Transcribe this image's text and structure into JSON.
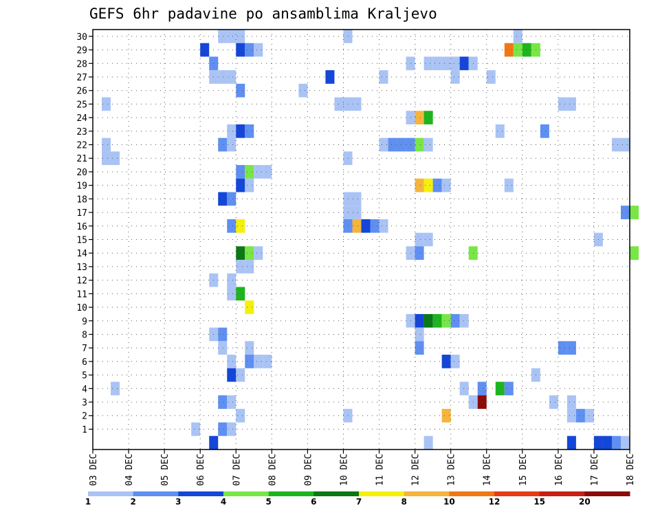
{
  "chart_data": {
    "type": "heatmap",
    "title": "GEFS 6hr padavine po ansamblima Kraljevo",
    "x_tick_labels": [
      "03 DEC",
      "04 DEC",
      "05 DEC",
      "06 DEC",
      "07 DEC",
      "08 DEC",
      "09 DEC",
      "10 DEC",
      "11 DEC",
      "12 DEC",
      "13 DEC",
      "14 DEC",
      "15 DEC",
      "16 DEC",
      "17 DEC",
      "18 DEC"
    ],
    "x_range_days": [
      0,
      15
    ],
    "time_step_hours": 6,
    "members_range": [
      0,
      30
    ],
    "y_tick_labels": [
      "1",
      "2",
      "3",
      "4",
      "5",
      "6",
      "7",
      "8",
      "9",
      "10",
      "11",
      "12",
      "13",
      "14",
      "15",
      "16",
      "17",
      "18",
      "19",
      "20",
      "21",
      "22",
      "23",
      "24",
      "25",
      "26",
      "27",
      "28",
      "29",
      "30"
    ],
    "grid": true,
    "legend": {
      "position": "bottom",
      "boundaries": [
        "1",
        "2",
        "3",
        "4",
        "5",
        "6",
        "7",
        "8",
        "10",
        "12",
        "15",
        "20"
      ],
      "colors": [
        "#aac3f5",
        "#5f8ff0",
        "#1446d8",
        "#78e646",
        "#1eb41e",
        "#0a7814",
        "#f5f00a",
        "#f5b43c",
        "#f07814",
        "#e63c14",
        "#c81e14",
        "#8c0a0a"
      ]
    },
    "palette": {
      "1": "#aac3f5",
      "2": "#5f8ff0",
      "3": "#1446d8",
      "4": "#78e646",
      "5": "#1eb41e",
      "6": "#0a7814",
      "7": "#f5f00a",
      "8": "#f5b43c",
      "9": "#f07814",
      "10": "#e63c14",
      "11": "#c81e14",
      "12": "#8c0a0a"
    },
    "cells_note": "each cell = [member, 6h step index from 03 DEC 00Z, color class 1..12]",
    "cells": [
      [
        30,
        14,
        1
      ],
      [
        30,
        15,
        1
      ],
      [
        30,
        16,
        1
      ],
      [
        30,
        28,
        1
      ],
      [
        30,
        47,
        1
      ],
      [
        29,
        12,
        3
      ],
      [
        29,
        16,
        3
      ],
      [
        29,
        17,
        2
      ],
      [
        29,
        18,
        1
      ],
      [
        29,
        46,
        9
      ],
      [
        29,
        47,
        4
      ],
      [
        29,
        48,
        5
      ],
      [
        29,
        49,
        4
      ],
      [
        28,
        13,
        2
      ],
      [
        28,
        35,
        1
      ],
      [
        28,
        37,
        1
      ],
      [
        28,
        38,
        1
      ],
      [
        28,
        39,
        1
      ],
      [
        28,
        40,
        1
      ],
      [
        28,
        41,
        3
      ],
      [
        28,
        42,
        1
      ],
      [
        27,
        13,
        1
      ],
      [
        27,
        14,
        1
      ],
      [
        27,
        15,
        1
      ],
      [
        27,
        26,
        3
      ],
      [
        27,
        32,
        1
      ],
      [
        27,
        40,
        1
      ],
      [
        27,
        44,
        1
      ],
      [
        26,
        16,
        2
      ],
      [
        26,
        23,
        1
      ],
      [
        25,
        1,
        1
      ],
      [
        25,
        27,
        1
      ],
      [
        25,
        28,
        1
      ],
      [
        25,
        29,
        1
      ],
      [
        25,
        52,
        1
      ],
      [
        25,
        53,
        1
      ],
      [
        24,
        35,
        1
      ],
      [
        24,
        36,
        8
      ],
      [
        24,
        37,
        5
      ],
      [
        23,
        15,
        1
      ],
      [
        23,
        16,
        3
      ],
      [
        23,
        17,
        2
      ],
      [
        23,
        45,
        1
      ],
      [
        23,
        50,
        2
      ],
      [
        22,
        1,
        1
      ],
      [
        22,
        14,
        2
      ],
      [
        22,
        15,
        1
      ],
      [
        22,
        32,
        1
      ],
      [
        22,
        33,
        2
      ],
      [
        22,
        34,
        2
      ],
      [
        22,
        35,
        2
      ],
      [
        22,
        36,
        4
      ],
      [
        22,
        37,
        1
      ],
      [
        22,
        58,
        1
      ],
      [
        22,
        59,
        1
      ],
      [
        21,
        1,
        1
      ],
      [
        21,
        2,
        1
      ],
      [
        21,
        28,
        1
      ],
      [
        20,
        16,
        2
      ],
      [
        20,
        17,
        4
      ],
      [
        20,
        18,
        1
      ],
      [
        20,
        19,
        1
      ],
      [
        19,
        16,
        3
      ],
      [
        19,
        17,
        1
      ],
      [
        19,
        36,
        8
      ],
      [
        19,
        37,
        7
      ],
      [
        19,
        38,
        2
      ],
      [
        19,
        39,
        1
      ],
      [
        19,
        46,
        1
      ],
      [
        18,
        14,
        3
      ],
      [
        18,
        15,
        2
      ],
      [
        18,
        28,
        1
      ],
      [
        18,
        29,
        1
      ],
      [
        17,
        28,
        1
      ],
      [
        17,
        29,
        1
      ],
      [
        17,
        59,
        2
      ],
      [
        17,
        60,
        4
      ],
      [
        16,
        15,
        2
      ],
      [
        16,
        16,
        7
      ],
      [
        16,
        28,
        2
      ],
      [
        16,
        29,
        8
      ],
      [
        16,
        30,
        3
      ],
      [
        16,
        31,
        2
      ],
      [
        16,
        32,
        1
      ],
      [
        15,
        36,
        1
      ],
      [
        15,
        37,
        1
      ],
      [
        15,
        56,
        1
      ],
      [
        14,
        16,
        6
      ],
      [
        14,
        17,
        4
      ],
      [
        14,
        18,
        1
      ],
      [
        14,
        35,
        1
      ],
      [
        14,
        36,
        2
      ],
      [
        14,
        42,
        4
      ],
      [
        14,
        60,
        4
      ],
      [
        13,
        16,
        1
      ],
      [
        13,
        17,
        1
      ],
      [
        12,
        13,
        1
      ],
      [
        12,
        15,
        1
      ],
      [
        11,
        15,
        1
      ],
      [
        11,
        16,
        5
      ],
      [
        10,
        17,
        7
      ],
      [
        9,
        35,
        1
      ],
      [
        9,
        36,
        3
      ],
      [
        9,
        37,
        6
      ],
      [
        9,
        38,
        5
      ],
      [
        9,
        39,
        4
      ],
      [
        9,
        40,
        2
      ],
      [
        9,
        41,
        1
      ],
      [
        8,
        13,
        1
      ],
      [
        8,
        14,
        2
      ],
      [
        8,
        36,
        1
      ],
      [
        7,
        14,
        1
      ],
      [
        7,
        17,
        1
      ],
      [
        7,
        36,
        2
      ],
      [
        7,
        52,
        2
      ],
      [
        7,
        53,
        2
      ],
      [
        6,
        15,
        1
      ],
      [
        6,
        17,
        2
      ],
      [
        6,
        18,
        1
      ],
      [
        6,
        19,
        1
      ],
      [
        6,
        39,
        3
      ],
      [
        6,
        40,
        1
      ],
      [
        5,
        15,
        3
      ],
      [
        5,
        16,
        1
      ],
      [
        5,
        49,
        1
      ],
      [
        4,
        2,
        1
      ],
      [
        4,
        41,
        1
      ],
      [
        4,
        43,
        2
      ],
      [
        4,
        45,
        5
      ],
      [
        4,
        46,
        2
      ],
      [
        3,
        14,
        2
      ],
      [
        3,
        15,
        1
      ],
      [
        3,
        42,
        1
      ],
      [
        3,
        43,
        12
      ],
      [
        3,
        51,
        1
      ],
      [
        3,
        53,
        1
      ],
      [
        2,
        16,
        1
      ],
      [
        2,
        28,
        1
      ],
      [
        2,
        39,
        8
      ],
      [
        2,
        53,
        1
      ],
      [
        2,
        54,
        2
      ],
      [
        2,
        55,
        1
      ],
      [
        1,
        11,
        1
      ],
      [
        1,
        14,
        2
      ],
      [
        1,
        15,
        1
      ],
      [
        0,
        13,
        3
      ],
      [
        0,
        37,
        1
      ],
      [
        0,
        53,
        3
      ],
      [
        0,
        56,
        3
      ],
      [
        0,
        57,
        3
      ],
      [
        0,
        58,
        2
      ],
      [
        0,
        59,
        1
      ]
    ]
  }
}
